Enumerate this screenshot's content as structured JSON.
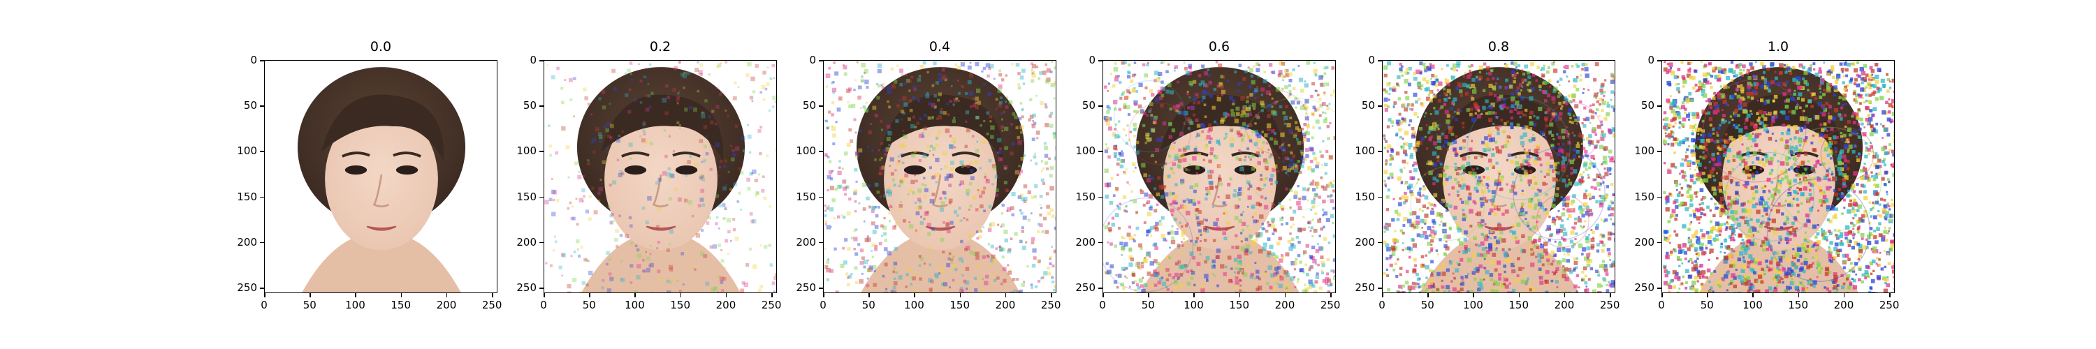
{
  "figure": {
    "panels": [
      {
        "title": "0.0",
        "noise_level": 0.0
      },
      {
        "title": "0.2",
        "noise_level": 0.2
      },
      {
        "title": "0.4",
        "noise_level": 0.4
      },
      {
        "title": "0.6",
        "noise_level": 0.6
      },
      {
        "title": "0.8",
        "noise_level": 0.8
      },
      {
        "title": "1.0",
        "noise_level": 1.0
      }
    ],
    "x_ticks": [
      "0",
      "50",
      "100",
      "150",
      "200",
      "250"
    ],
    "y_ticks": [
      "0",
      "50",
      "100",
      "150",
      "200",
      "250"
    ],
    "image_subject": "face-portrait",
    "colors": {
      "hair": "#3b2a22",
      "skin": "#e9c5b0",
      "background": "#ffffff",
      "noise_palette": [
        "#e0338a",
        "#2fb7c9",
        "#7fd34a",
        "#c23b2e",
        "#2a44d6",
        "#f2d13b"
      ]
    }
  }
}
